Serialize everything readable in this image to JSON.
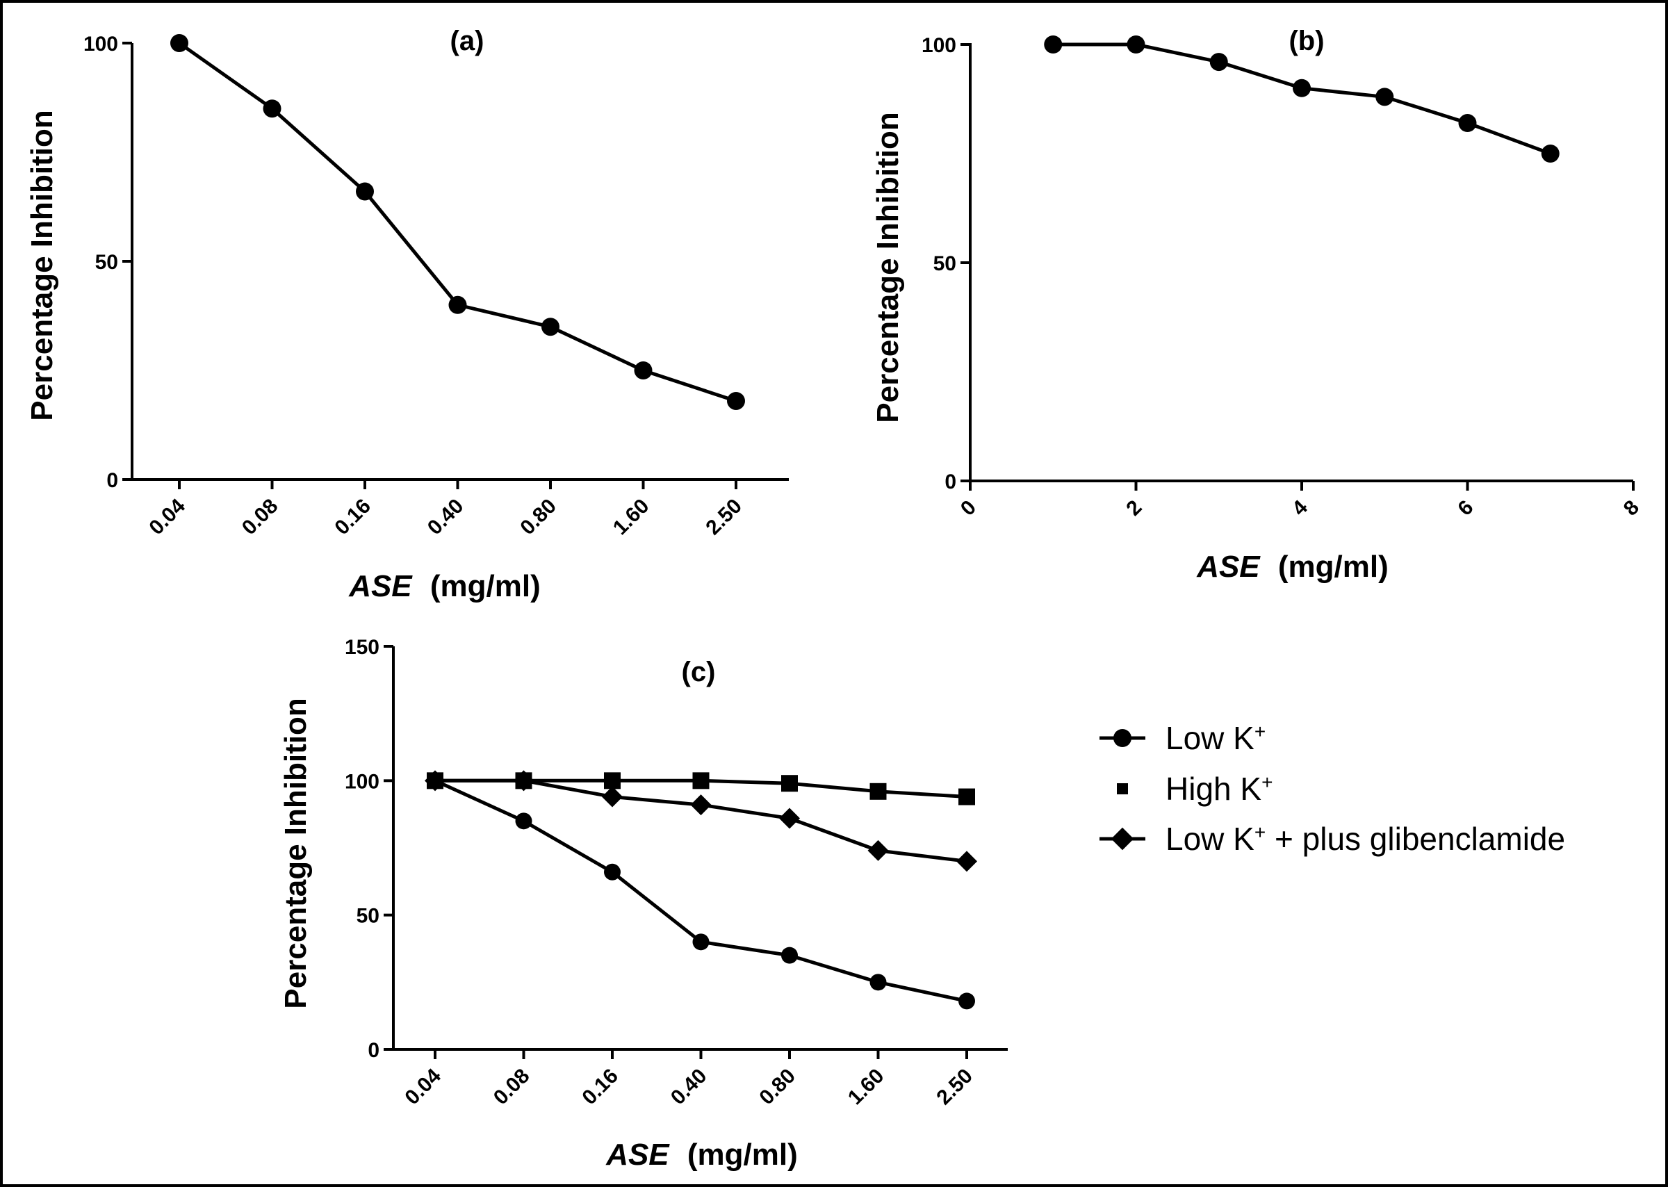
{
  "chart_data": [
    {
      "type": "line",
      "panel_label": "(a)",
      "xlabel_italic": "ASE",
      "xlabel_unit": "(mg/ml)",
      "ylabel": "Percentage Inhibition",
      "categories": [
        "0.04",
        "0.08",
        "0.16",
        "0.40",
        "0.80",
        "1.60",
        "2.50"
      ],
      "ylim": [
        0,
        100
      ],
      "yticks": [
        "0",
        "50",
        "100"
      ],
      "series": [
        {
          "marker": "circle",
          "values": [
            100,
            85,
            66,
            40,
            35,
            25,
            18
          ]
        }
      ]
    },
    {
      "type": "line",
      "panel_label": "(b)",
      "xlabel_italic": "ASE",
      "xlabel_unit": "(mg/ml)",
      "ylabel": "Percentage Inhibition",
      "xlim": [
        0,
        8
      ],
      "xticks": [
        "0",
        "2",
        "4",
        "6",
        "8"
      ],
      "ylim": [
        0,
        100
      ],
      "yticks": [
        "0",
        "50",
        "100"
      ],
      "series": [
        {
          "marker": "circle",
          "x": [
            1,
            2,
            3,
            4,
            5,
            6,
            7
          ],
          "values": [
            100,
            100,
            96,
            90,
            88,
            82,
            75
          ]
        }
      ]
    },
    {
      "type": "line",
      "panel_label": "(c)",
      "xlabel_italic": "ASE",
      "xlabel_unit": "(mg/ml)",
      "ylabel": "Percentage Inhibition",
      "categories": [
        "0.04",
        "0.08",
        "0.16",
        "0.40",
        "0.80",
        "1.60",
        "2.50"
      ],
      "ylim": [
        0,
        150
      ],
      "yticks": [
        "0",
        "50",
        "100",
        "150"
      ],
      "legend_position": "right",
      "series": [
        {
          "name": "Low K",
          "superscript": "+",
          "marker": "circle",
          "values": [
            100,
            85,
            66,
            40,
            35,
            25,
            18
          ]
        },
        {
          "name": "High K",
          "superscript": "+",
          "marker": "square",
          "values": [
            100,
            100,
            100,
            100,
            99,
            96,
            94
          ]
        },
        {
          "name": "Low K",
          "superscript": "+",
          "name_suffix": " + plus glibenclamide",
          "marker": "diamond",
          "values": [
            100,
            100,
            94,
            91,
            86,
            74,
            70
          ]
        }
      ]
    }
  ]
}
